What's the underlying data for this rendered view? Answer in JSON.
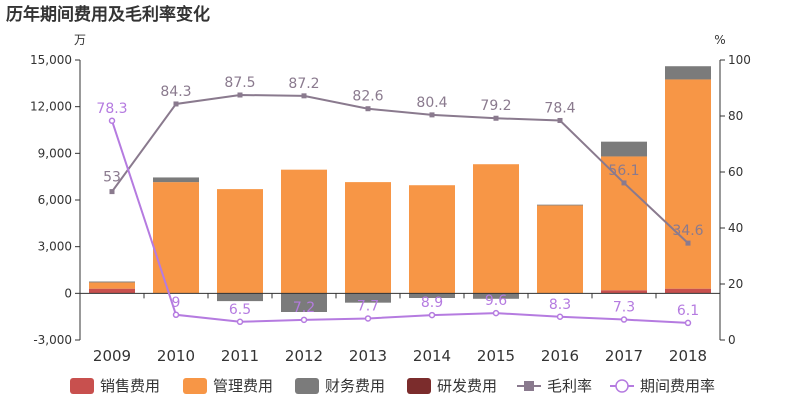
{
  "chart_data": {
    "type": "bar",
    "title": "历年期间费用及毛利率变化",
    "y_left_unit": "万",
    "y_right_unit": "%",
    "y_left_range": [
      -3000,
      15000
    ],
    "y_left_ticks": [
      "-3,000",
      "0",
      "3,000",
      "6,000",
      "9,000",
      "12,000",
      "15,000"
    ],
    "y_left_tick_values": [
      -3000,
      0,
      3000,
      6000,
      9000,
      12000,
      15000
    ],
    "y_right_range": [
      0,
      100
    ],
    "y_right_ticks": [
      "0",
      "20",
      "40",
      "60",
      "80",
      "100"
    ],
    "y_right_tick_values": [
      0,
      20,
      40,
      60,
      80,
      100
    ],
    "categories": [
      "2009",
      "2010",
      "2011",
      "2012",
      "2013",
      "2014",
      "2015",
      "2016",
      "2017",
      "2018"
    ],
    "bar_series": [
      {
        "name": "销售费用",
        "color": "#c8504e",
        "values": [
          300,
          0,
          0,
          0,
          0,
          0,
          0,
          0,
          200,
          300
        ]
      },
      {
        "name": "管理费用",
        "color": "#f79646",
        "values": [
          400,
          7150,
          6700,
          7950,
          7150,
          6950,
          8300,
          5650,
          8600,
          13450
        ]
      },
      {
        "name": "财务费用",
        "color": "#7b7b7b",
        "values": [
          60,
          300,
          -500,
          -1200,
          -600,
          -300,
          -350,
          50,
          950,
          850
        ]
      },
      {
        "name": "研发费用",
        "color": "#7b2c2c",
        "values": [
          0,
          0,
          0,
          0,
          0,
          0,
          0,
          0,
          0,
          0
        ]
      }
    ],
    "line_series": [
      {
        "name": "毛利率",
        "color": "#8a7a8e",
        "values": [
          53,
          84.3,
          87.5,
          87.2,
          82.6,
          80.4,
          79.2,
          78.4,
          56.1,
          34.6
        ],
        "labels": [
          "53",
          "84.3",
          "87.5",
          "87.2",
          "82.6",
          "80.4",
          "79.2",
          "78.4",
          "56.1",
          "34.6"
        ]
      },
      {
        "name": "期间费用率",
        "color": "#b57be0",
        "values": [
          78.3,
          9,
          6.5,
          7.2,
          7.7,
          8.9,
          9.6,
          8.3,
          7.3,
          6.1
        ],
        "labels": [
          "78.3",
          "9",
          "6.5",
          "7.2",
          "7.7",
          "8.9",
          "9.6",
          "8.3",
          "7.3",
          "6.1"
        ]
      }
    ],
    "legend": [
      "销售费用",
      "管理费用",
      "财务费用",
      "研发费用",
      "毛利率",
      "期间费用率"
    ]
  }
}
